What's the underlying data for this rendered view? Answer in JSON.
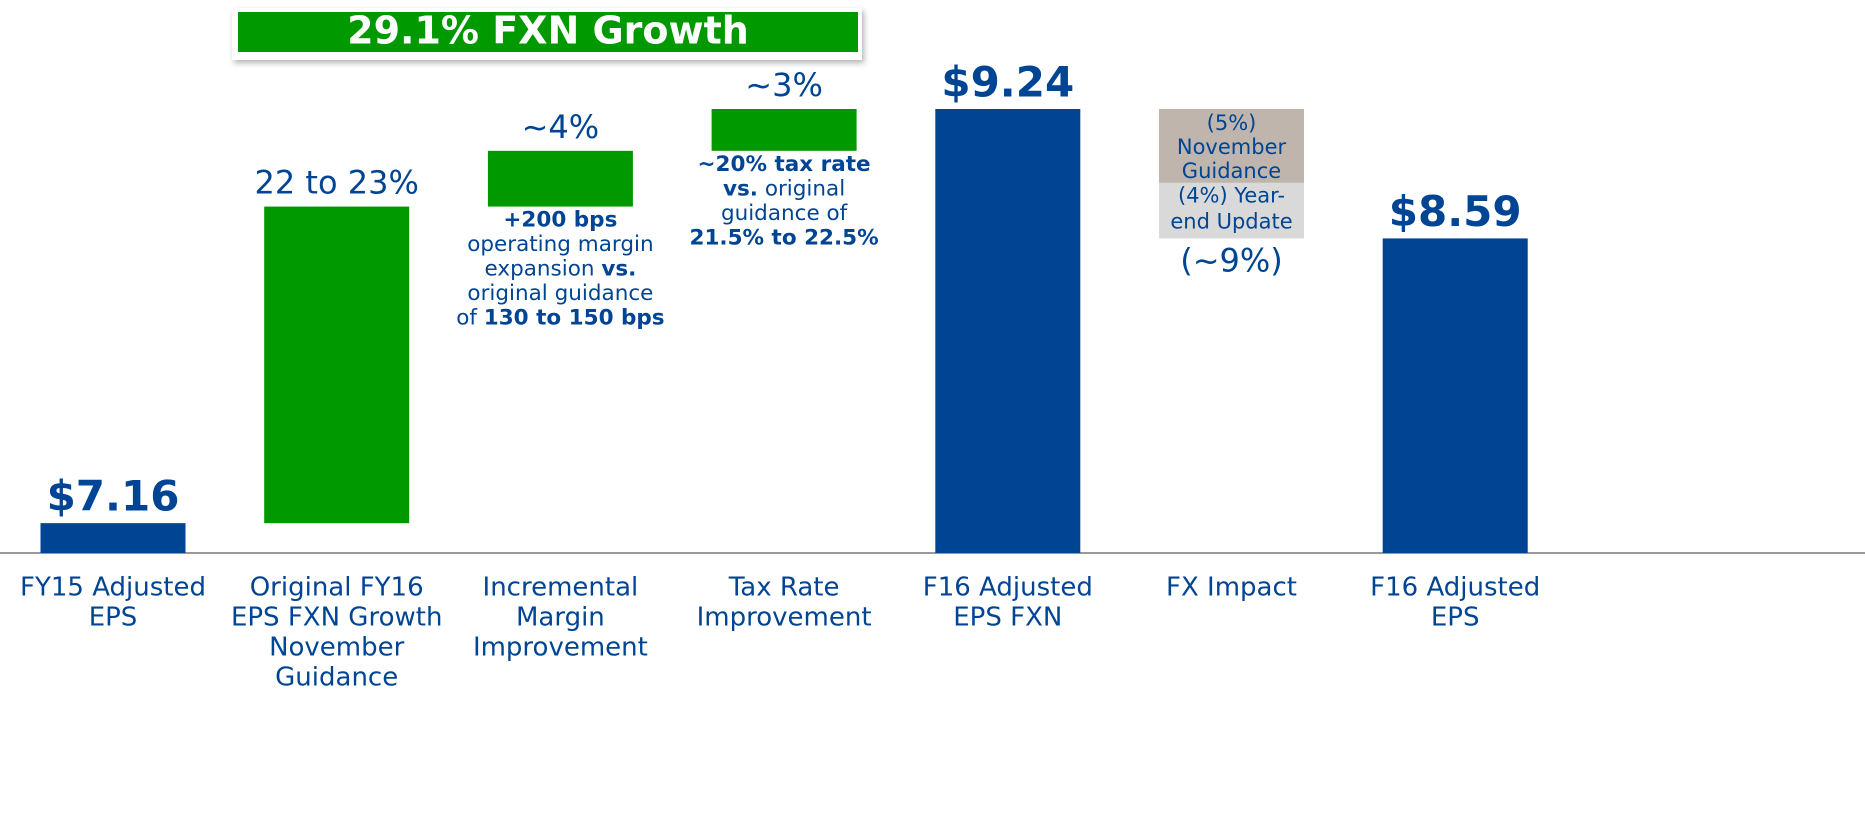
{
  "chart_data": {
    "type": "waterfall",
    "title": "29.1% FXN Growth",
    "title_color": "#009900",
    "categories": [
      [
        "FY15 Adjusted",
        "EPS"
      ],
      [
        "Original FY16",
        "EPS FXN Growth",
        "November",
        "Guidance"
      ],
      [
        "Incremental",
        "Margin",
        "Improvement"
      ],
      [
        "Tax Rate",
        "Improvement"
      ],
      [
        "F16 Adjusted",
        "EPS FXN"
      ],
      [
        "FX Impact"
      ],
      [
        "F16 Adjusted",
        "EPS"
      ]
    ],
    "values": [
      7.16,
      1.59,
      0.28,
      0.21,
      9.24,
      -0.65,
      8.59
    ],
    "measure": [
      "absolute",
      "relative",
      "relative",
      "relative",
      "absolute",
      "relative",
      "absolute"
    ],
    "value_labels": [
      "$7.16",
      null,
      null,
      null,
      "$9.24",
      null,
      "$8.59"
    ],
    "step_labels": [
      null,
      "22 to 23%",
      "~4%",
      "~3%",
      null,
      "(~9%)",
      null
    ],
    "colors": {
      "absolute": "#004494",
      "increase": "#009900",
      "decrease": "#d9d9d9"
    },
    "fx_breakdown": {
      "value": -0.37,
      "color": "#bfb5ac",
      "lines": [
        "(5%)",
        "November",
        "Guidance"
      ]
    },
    "fx_lines": [
      "(4%) Year-",
      "end Update"
    ],
    "notes": [
      null,
      null,
      [
        [
          {
            "t": "+200 bps",
            "b": true
          }
        ],
        [
          {
            "t": "operating margin",
            "b": false
          }
        ],
        [
          {
            "t": "expansion ",
            "b": false
          },
          {
            "t": "vs.",
            "b": true
          }
        ],
        [
          {
            "t": "original guidance",
            "b": false
          }
        ],
        [
          {
            "t": "of ",
            "b": false
          },
          {
            "t": "130 to 150 bps",
            "b": true
          }
        ]
      ],
      [
        [
          {
            "t": "~20% tax rate",
            "b": true
          }
        ],
        [
          {
            "t": "vs.",
            "b": true
          },
          {
            "t": " original",
            "b": false
          }
        ],
        [
          {
            "t": "guidance of",
            "b": false
          }
        ],
        [
          {
            "t": "21.5% to 22.5%",
            "b": true
          }
        ]
      ],
      null,
      null,
      null
    ],
    "ylim": [
      7.01,
      9.24
    ]
  }
}
